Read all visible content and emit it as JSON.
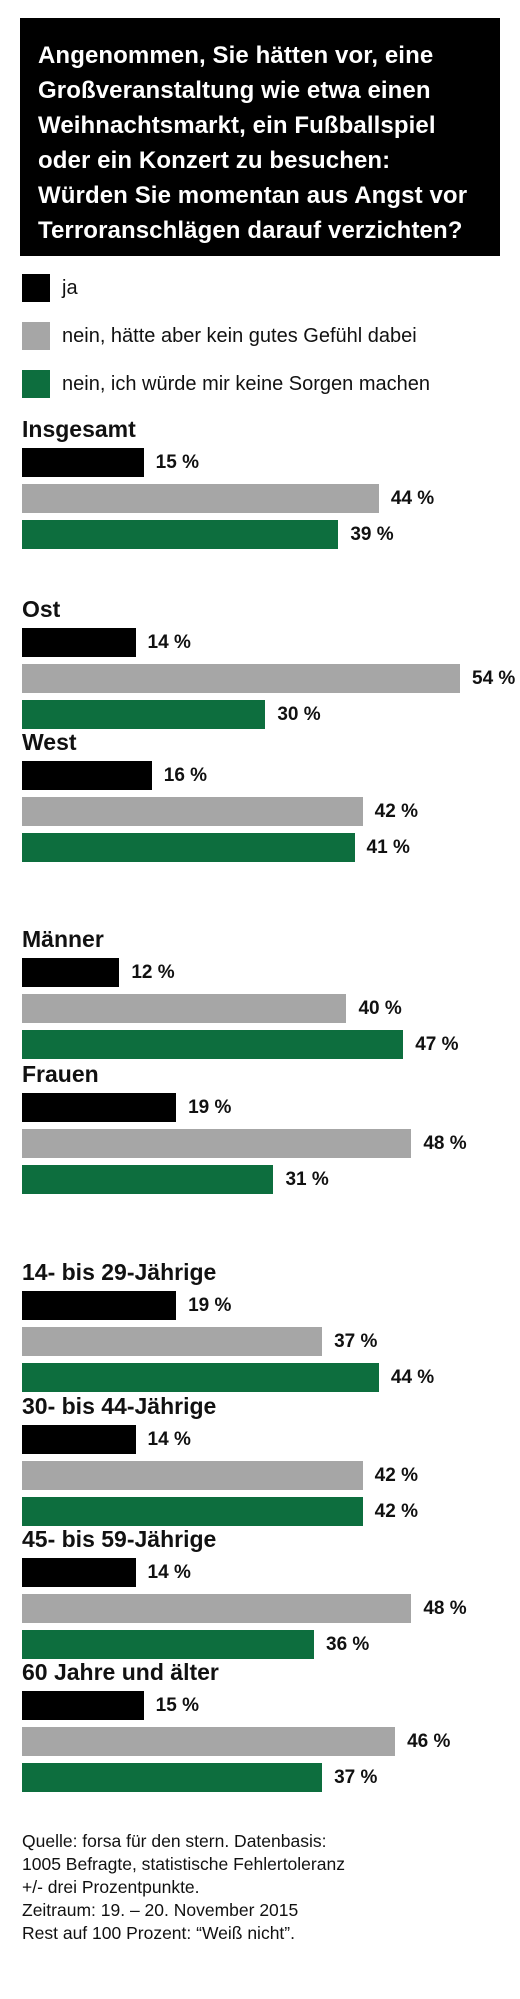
{
  "colors": {
    "ja": "#000000",
    "nein_ungutes_gefuehl": "#a6a6a6",
    "nein_keine_sorgen": "#0d6e3e"
  },
  "title": "Angenommen, Sie hätten vor, eine Großveranstaltung wie etwa einen Weihnachtsmarkt, ein Fußballspiel oder ein Konzert zu besuchen: Würden Sie momentan aus Angst vor Terroranschlägen darauf verzichten?",
  "source": [
    "Quelle: forsa für den stern. Datenbasis:",
    "1005 Befragte, statistische Fehlertoleranz",
    "+/- drei Prozentpunkte.",
    "Zeitraum: 19. – 20. November 2015",
    "Rest auf 100 Prozent: “Weiß nicht”."
  ],
  "chart_data": {
    "type": "bar",
    "orientation": "horizontal",
    "unit": "%",
    "xlim": [
      0,
      54
    ],
    "series": [
      {
        "name": "ja",
        "color": "#000000"
      },
      {
        "name": "nein, hätte aber kein gutes Gefühl dabei",
        "color": "#a6a6a6"
      },
      {
        "name": "nein, ich würde mir keine Sorgen machen",
        "color": "#0d6e3e"
      }
    ],
    "groups": [
      {
        "label": "Insgesamt",
        "values": [
          15,
          44,
          39
        ]
      },
      {
        "label": "Ost",
        "values": [
          14,
          54,
          30
        ]
      },
      {
        "label": "West",
        "values": [
          16,
          42,
          41
        ]
      },
      {
        "label": "Männer",
        "values": [
          12,
          40,
          47
        ]
      },
      {
        "label": "Frauen",
        "values": [
          19,
          48,
          31
        ]
      },
      {
        "label": "14- bis 29-Jährige",
        "values": [
          19,
          37,
          44
        ]
      },
      {
        "label": "30- bis 44-Jährige",
        "values": [
          14,
          42,
          42
        ]
      },
      {
        "label": "45- bis 59-Jährige",
        "values": [
          14,
          48,
          36
        ]
      },
      {
        "label": "60 Jahre und älter",
        "values": [
          15,
          46,
          37
        ]
      }
    ]
  }
}
